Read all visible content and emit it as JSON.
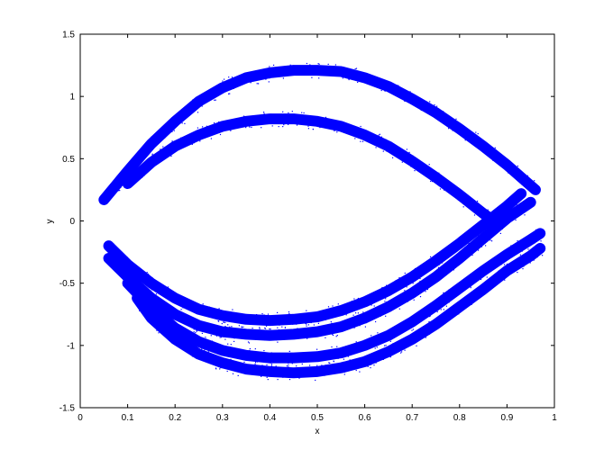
{
  "chart_data": {
    "type": "scatter",
    "title": "",
    "xlabel": "x",
    "ylabel": "y",
    "xlim": [
      0,
      1
    ],
    "ylim": [
      -1.5,
      1.5
    ],
    "xticks": [
      "0",
      "0.1",
      "0.2",
      "0.3",
      "0.4",
      "0.5",
      "0.6",
      "0.7",
      "0.8",
      "0.9",
      "1"
    ],
    "yticks": [
      "-1.5",
      "-1",
      "-0.5",
      "0",
      "0.5",
      "1",
      "1.5"
    ],
    "grid": false,
    "legend": "none",
    "marker_color": "#0000ff",
    "series": [
      {
        "x": [
          0.05,
          0.1,
          0.15,
          0.2,
          0.25,
          0.3,
          0.35,
          0.4,
          0.45,
          0.5,
          0.55,
          0.6,
          0.65,
          0.7,
          0.75,
          0.8,
          0.85,
          0.9,
          0.93,
          0.96
        ],
        "y": [
          0.17,
          0.4,
          0.62,
          0.8,
          0.96,
          1.07,
          1.15,
          1.19,
          1.21,
          1.21,
          1.2,
          1.15,
          1.08,
          0.98,
          0.87,
          0.74,
          0.6,
          0.45,
          0.35,
          0.25
        ]
      },
      {
        "x": [
          0.1,
          0.15,
          0.2,
          0.25,
          0.3,
          0.35,
          0.4,
          0.45,
          0.5,
          0.55,
          0.6,
          0.65,
          0.7,
          0.75,
          0.8,
          0.85,
          0.88
        ],
        "y": [
          0.3,
          0.47,
          0.6,
          0.69,
          0.76,
          0.8,
          0.82,
          0.82,
          0.8,
          0.76,
          0.69,
          0.6,
          0.48,
          0.35,
          0.21,
          0.06,
          -0.02
        ]
      },
      {
        "x": [
          0.06,
          0.1,
          0.15,
          0.2,
          0.25,
          0.3,
          0.35,
          0.4,
          0.45,
          0.5,
          0.55,
          0.6,
          0.65,
          0.7,
          0.75,
          0.8,
          0.85,
          0.9,
          0.93
        ],
        "y": [
          -0.2,
          -0.35,
          -0.5,
          -0.62,
          -0.71,
          -0.76,
          -0.79,
          -0.8,
          -0.79,
          -0.77,
          -0.72,
          -0.65,
          -0.56,
          -0.45,
          -0.32,
          -0.18,
          -0.03,
          0.12,
          0.22
        ]
      },
      {
        "x": [
          0.06,
          0.1,
          0.15,
          0.2,
          0.25,
          0.3,
          0.35,
          0.4,
          0.45,
          0.5,
          0.55,
          0.6,
          0.65,
          0.7,
          0.75,
          0.8,
          0.85,
          0.9,
          0.95
        ],
        "y": [
          -0.3,
          -0.45,
          -0.62,
          -0.75,
          -0.84,
          -0.89,
          -0.91,
          -0.92,
          -0.91,
          -0.89,
          -0.85,
          -0.78,
          -0.69,
          -0.58,
          -0.45,
          -0.3,
          -0.14,
          0.02,
          0.15
        ]
      },
      {
        "x": [
          0.1,
          0.15,
          0.2,
          0.25,
          0.3,
          0.35,
          0.4,
          0.45,
          0.5,
          0.55,
          0.6,
          0.65,
          0.7,
          0.75,
          0.8,
          0.85,
          0.9,
          0.95,
          0.97
        ],
        "y": [
          -0.5,
          -0.7,
          -0.86,
          -0.97,
          -1.04,
          -1.08,
          -1.1,
          -1.1,
          -1.09,
          -1.06,
          -1.0,
          -0.92,
          -0.81,
          -0.68,
          -0.54,
          -0.4,
          -0.27,
          -0.15,
          -0.1
        ]
      },
      {
        "x": [
          0.12,
          0.15,
          0.2,
          0.25,
          0.3,
          0.35,
          0.4,
          0.45,
          0.5,
          0.55,
          0.6,
          0.65,
          0.7,
          0.75,
          0.8,
          0.85,
          0.9,
          0.95,
          0.97
        ],
        "y": [
          -0.62,
          -0.78,
          -0.95,
          -1.07,
          -1.14,
          -1.19,
          -1.21,
          -1.22,
          -1.21,
          -1.18,
          -1.13,
          -1.05,
          -0.95,
          -0.83,
          -0.69,
          -0.55,
          -0.4,
          -0.28,
          -0.22
        ]
      }
    ]
  }
}
